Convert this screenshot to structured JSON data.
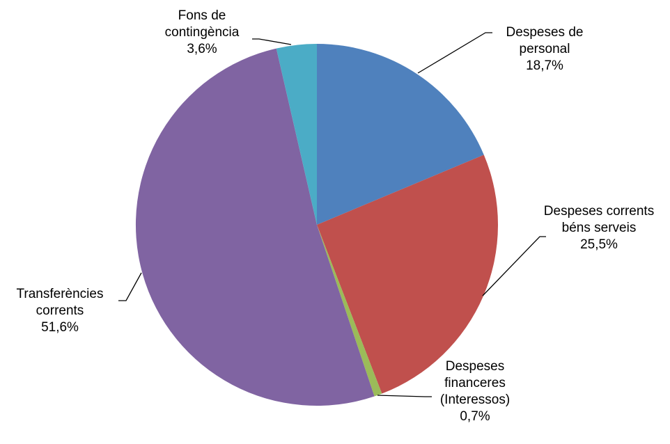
{
  "chart_data": {
    "type": "pie",
    "start_angle_deg": 0,
    "direction": "clockwise",
    "slices": [
      {
        "label_lines": [
          "Despeses de",
          "personal"
        ],
        "value": 18.7,
        "value_label": "18,7%",
        "color": "#4F81BD"
      },
      {
        "label_lines": [
          "Despeses corrents",
          "béns serveis"
        ],
        "value": 25.5,
        "value_label": "25,5%",
        "color": "#C0504D"
      },
      {
        "label_lines": [
          "Despeses",
          "financeres",
          "(Interessos)"
        ],
        "value": 0.7,
        "value_label": "0,7%",
        "color": "#9BBB59"
      },
      {
        "label_lines": [
          "Transferències",
          "corrents"
        ],
        "value": 51.6,
        "value_label": "51,6%",
        "color": "#8064A2"
      },
      {
        "label_lines": [
          "Fons de",
          "contingència"
        ],
        "value": 3.6,
        "value_label": "3,6%",
        "color": "#4BACC6"
      }
    ]
  }
}
